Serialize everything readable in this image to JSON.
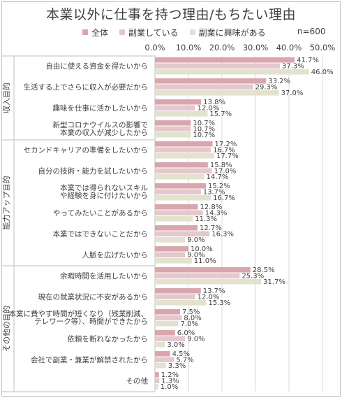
{
  "title": "本業以外に仕事を持つ理由/もちたい理由",
  "sample_note": "n=600",
  "colors": {
    "series": [
      "#d9a6ae",
      "#e4c8cc",
      "#e2e2cf"
    ],
    "grid": "#d9d9d9",
    "text": "#404040",
    "axis": "#bfbfbf"
  },
  "chart_data": {
    "type": "bar",
    "orientation": "horizontal",
    "title": "本業以外に仕事を持つ理由/もちたい理由",
    "xlim": [
      0,
      50
    ],
    "ticks": [
      "0.0%",
      "10.0%",
      "20.0%",
      "30.0%",
      "40.0%",
      "50.0%"
    ],
    "grid": true,
    "legend": "top",
    "series": [
      {
        "name": "全体",
        "values": [
          41.7,
          33.2,
          13.8,
          10.7,
          17.2,
          15.8,
          15.2,
          12.8,
          12.7,
          10.0,
          28.5,
          13.7,
          7.5,
          6.0,
          4.5,
          1.2
        ]
      },
      {
        "name": "副業している",
        "values": [
          37.3,
          29.3,
          12.0,
          10.7,
          16.7,
          17.0,
          13.7,
          14.3,
          16.3,
          9.0,
          25.3,
          12.0,
          8.0,
          9.0,
          5.7,
          1.3
        ]
      },
      {
        "name": "副業に興味がある",
        "values": [
          46.0,
          37.0,
          15.7,
          10.7,
          17.7,
          14.7,
          16.7,
          11.3,
          9.0,
          11.0,
          31.7,
          15.3,
          7.0,
          3.0,
          3.3,
          1.0
        ]
      }
    ],
    "labels": [
      [
        "41.7%",
        "37.3%",
        "46.0%"
      ],
      [
        "33.2%",
        "29.3%",
        "37.0%"
      ],
      [
        "13.8%",
        "12.0%",
        "15.7%"
      ],
      [
        "10.7%",
        "10.7%",
        "10.7%"
      ],
      [
        "17.2%",
        "16.7%",
        "17.7%"
      ],
      [
        "15.8%",
        "17.0%",
        "14.7%"
      ],
      [
        "15.2%",
        "13.7%",
        "16.7%"
      ],
      [
        "12.8%",
        "14.3%",
        "11.3%"
      ],
      [
        "12.7%",
        "16.3%",
        "9.0%"
      ],
      [
        "10.0%",
        "9.0%",
        "11.0%"
      ],
      [
        "28.5%",
        "25.3%",
        "31.7%"
      ],
      [
        "13.7%",
        "12.0%",
        "15.3%"
      ],
      [
        "7.5%",
        "8.0%",
        "7.0%"
      ],
      [
        "6.0%",
        "9.0%",
        "3.0%"
      ],
      [
        "4.5%",
        "5.7%",
        "3.3%"
      ],
      [
        "1.2%",
        "1.3%",
        "1.0%"
      ]
    ],
    "categories": [
      [
        "自由に使える資金を得たいから"
      ],
      [
        "生活する上でさらに収入が必要だから"
      ],
      [
        "趣味を仕事に活かしたいから"
      ],
      [
        "新型コロナウイルスの影響で",
        "本業の収入が減少したから"
      ],
      [
        "セカンドキャリアの準備をしたいから"
      ],
      [
        "自分の技術・能力を試したいから"
      ],
      [
        "本業では得られないスキル",
        "や経験を身に付けたいから"
      ],
      [
        "やってみたいことがあるから"
      ],
      [
        "本業ではできないことだから"
      ],
      [
        "人脈を広げたいから"
      ],
      [
        "余暇時間を活用したいから"
      ],
      [
        "現在の就業状況に不安があるから"
      ],
      [
        "本業に費やす時間が短くなり（残業削減、",
        "テレワーク等）、時間ができたから"
      ],
      [
        "依頼を断れなかったから"
      ],
      [
        "会社で副業・兼業が解禁されたから"
      ],
      [
        "その他"
      ]
    ],
    "groups": [
      {
        "name": "収入目的",
        "items": 4
      },
      {
        "name": "能力アップ目的",
        "items": 6
      },
      {
        "name": "その他の目的",
        "items": 6
      }
    ]
  }
}
